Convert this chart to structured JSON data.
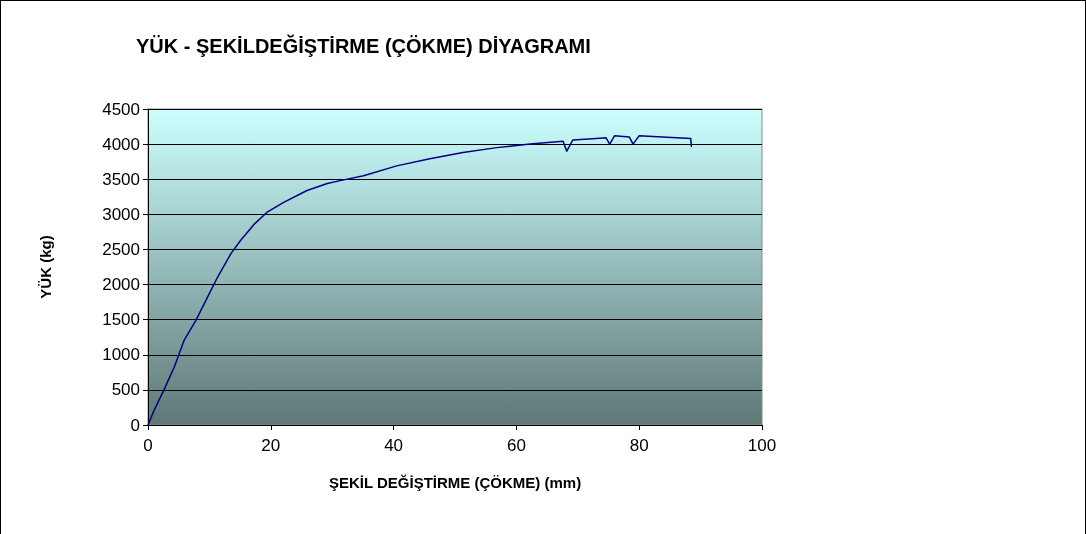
{
  "chart_data": {
    "type": "line",
    "title": "YÜK - ŞEKİLDEĞİŞTİRME (ÇÖKME) DİYAGRAMI",
    "xlabel": "ŞEKİL DEĞİŞTİRME (ÇÖKME) (mm)",
    "ylabel": "YÜK (kg)",
    "series": [
      {
        "color": "#000080",
        "x": [
          0,
          1.0,
          2.6,
          4.3,
          5.9,
          7.8,
          9.7,
          11.3,
          13.5,
          15.1,
          17.3,
          19.4,
          22.1,
          25.9,
          29.2,
          31.3,
          35.1,
          40.5,
          45.9,
          51.3,
          56.8,
          62.2,
          67.6,
          68.2,
          69.2,
          73.0,
          74.6,
          75.2,
          76.0,
          78.4,
          79.0,
          80.0,
          83.8,
          88.4,
          88.5
        ],
        "values": [
          0,
          210,
          500,
          830,
          1210,
          1490,
          1820,
          2100,
          2440,
          2630,
          2860,
          3030,
          3170,
          3340,
          3440,
          3480,
          3550,
          3690,
          3790,
          3880,
          3950,
          4000,
          4040,
          3900,
          4060,
          4080,
          4090,
          4000,
          4120,
          4100,
          4000,
          4120,
          4100,
          4080,
          3960
        ]
      }
    ],
    "xlim": [
      0,
      100
    ],
    "xticks": [
      0,
      20,
      40,
      60,
      80,
      100
    ],
    "ylim": [
      0,
      4500
    ],
    "yticks": [
      0,
      500,
      1000,
      1500,
      2000,
      2500,
      3000,
      3500,
      4000,
      4500
    ],
    "grid": "y",
    "marker": "none",
    "line_style": "solid"
  }
}
